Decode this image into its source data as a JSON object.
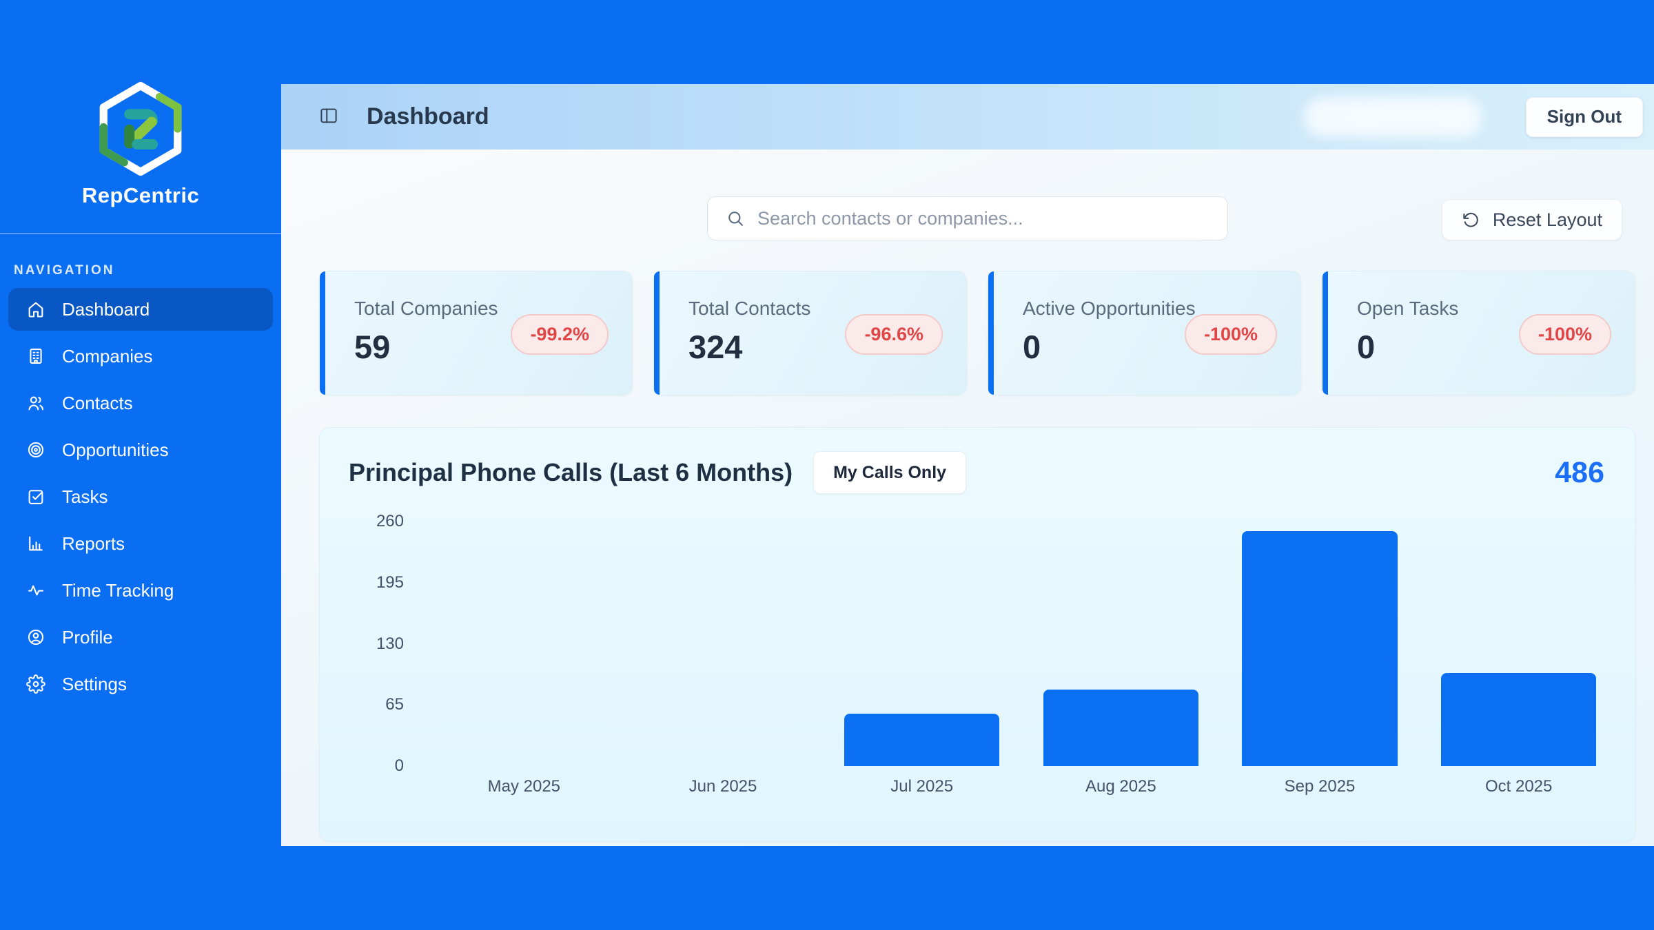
{
  "app": {
    "name": "RepCentric"
  },
  "sidebar": {
    "section_label": "NAVIGATION",
    "items": [
      {
        "label": "Dashboard",
        "icon": "home-icon",
        "active": true
      },
      {
        "label": "Companies",
        "icon": "building-icon",
        "active": false
      },
      {
        "label": "Contacts",
        "icon": "users-icon",
        "active": false
      },
      {
        "label": "Opportunities",
        "icon": "target-icon",
        "active": false
      },
      {
        "label": "Tasks",
        "icon": "check-square-icon",
        "active": false
      },
      {
        "label": "Reports",
        "icon": "bar-chart-icon",
        "active": false
      },
      {
        "label": "Time Tracking",
        "icon": "activity-icon",
        "active": false
      },
      {
        "label": "Profile",
        "icon": "user-circle-icon",
        "active": false
      },
      {
        "label": "Settings",
        "icon": "gear-icon",
        "active": false
      }
    ]
  },
  "header": {
    "title": "Dashboard",
    "toggle_icon": "panel-left-icon",
    "sign_out_label": "Sign Out"
  },
  "toolbar": {
    "search_icon": "search-icon",
    "search_placeholder": "Search contacts or companies...",
    "search_value": "",
    "reset_icon": "rotate-ccw-icon",
    "reset_layout_label": "Reset Layout"
  },
  "stats": [
    {
      "label": "Total Companies",
      "value": "59",
      "change": "-99.2%"
    },
    {
      "label": "Total Contacts",
      "value": "324",
      "change": "-96.6%"
    },
    {
      "label": "Active Opportunities",
      "value": "0",
      "change": "-100%"
    },
    {
      "label": "Open Tasks",
      "value": "0",
      "change": "-100%"
    }
  ],
  "chart": {
    "title": "Principal Phone Calls (Last 6 Months)",
    "filter_label": "My Calls Only",
    "total": "486"
  },
  "chart_data": {
    "type": "bar",
    "title": "Principal Phone Calls (Last 6 Months)",
    "categories": [
      "May 2025",
      "Jun 2025",
      "Jul 2025",
      "Aug 2025",
      "Sep 2025",
      "Oct 2025"
    ],
    "values": [
      0,
      0,
      56,
      81,
      250,
      99
    ],
    "total": 486,
    "xlabel": "",
    "ylabel": "",
    "ylim": [
      0,
      260
    ],
    "yticks": [
      260,
      195,
      130,
      65,
      0
    ],
    "bar_color": "#0b6ff2",
    "grid": false,
    "legend": false
  },
  "colors": {
    "page_background": "#0a6ef3",
    "active_nav_background": "#0857c4",
    "accent_blue": "#0b6ff2",
    "negative_red": "#e04646",
    "header_gradient_start": "#abd2f7",
    "header_gradient_end": "#d8f0fc"
  }
}
